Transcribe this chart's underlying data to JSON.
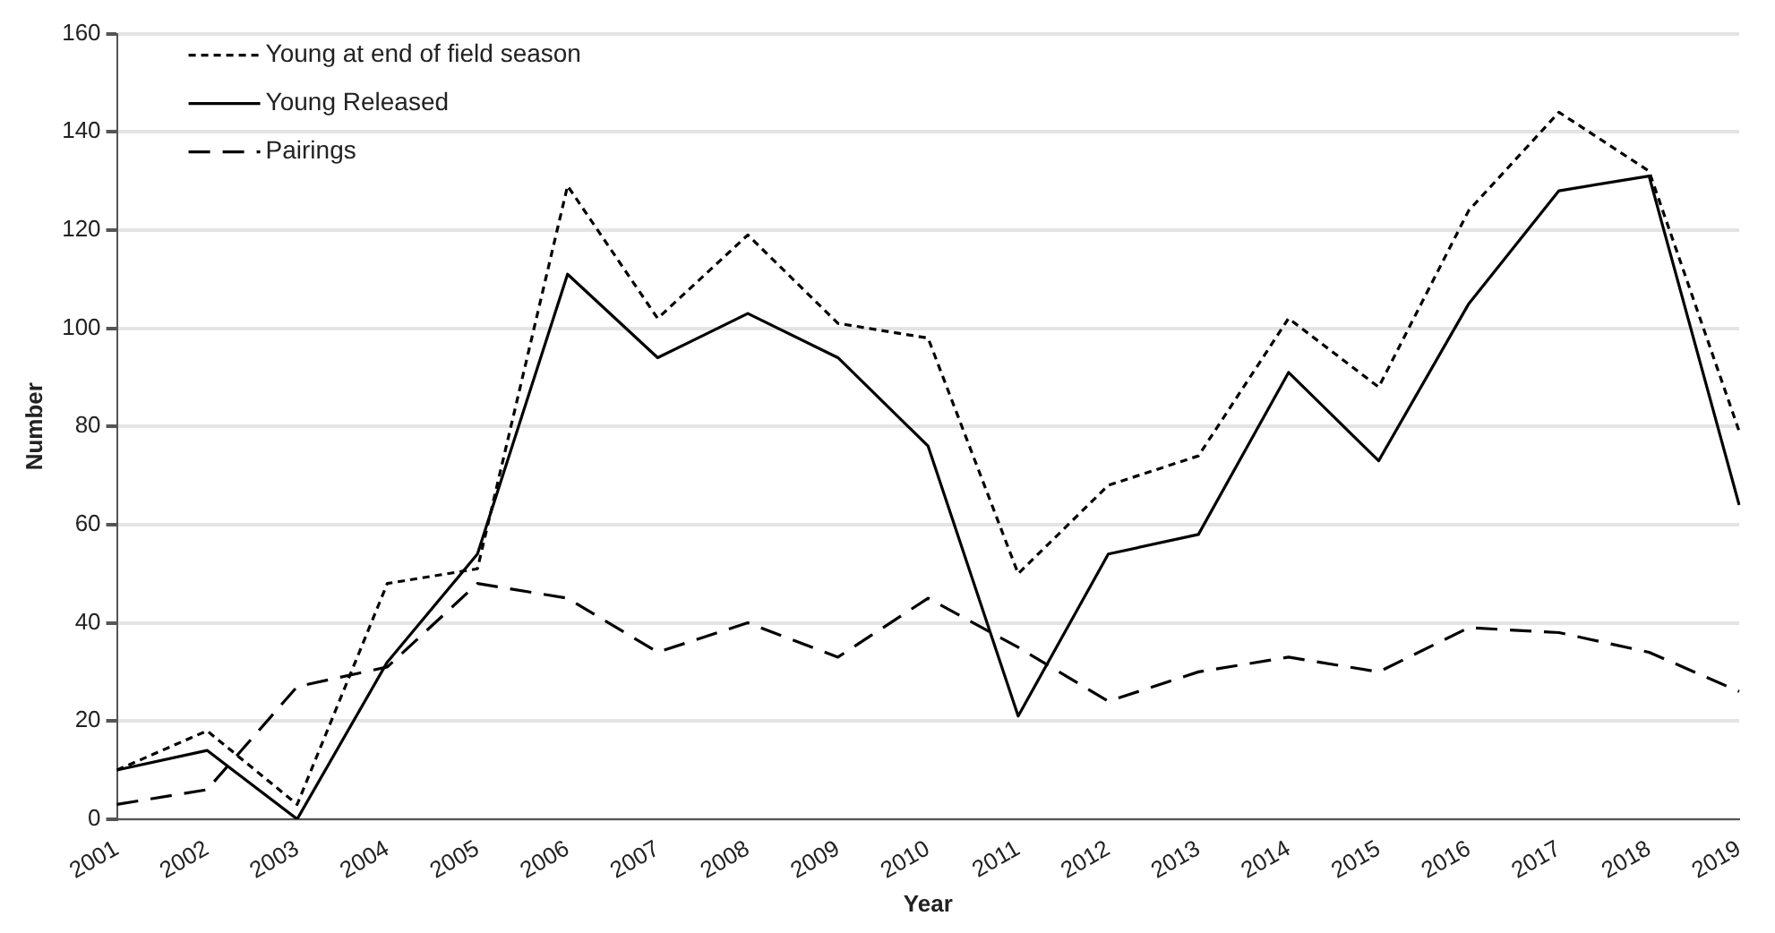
{
  "chart_data": {
    "type": "line",
    "xlabel": "Year",
    "ylabel": "Number",
    "categories": [
      "2001",
      "2002",
      "2003",
      "2004",
      "2005",
      "2006",
      "2007",
      "2008",
      "2009",
      "2010",
      "2011",
      "2012",
      "2013",
      "2014",
      "2015",
      "2016",
      "2017",
      "2018",
      "2019"
    ],
    "series": [
      {
        "name": "Young at end of field season",
        "color": "#000000",
        "line_style": "dotted",
        "values": [
          10,
          18,
          3,
          48,
          51,
          129,
          102,
          119,
          101,
          98,
          50,
          68,
          74,
          102,
          88,
          124,
          144,
          132,
          79
        ]
      },
      {
        "name": "Young Released",
        "color": "#000000",
        "line_style": "solid",
        "values": [
          10,
          14,
          0,
          32,
          54,
          111,
          94,
          103,
          94,
          76,
          21,
          54,
          58,
          91,
          73,
          105,
          128,
          131,
          64
        ]
      },
      {
        "name": "Pairings",
        "color": "#000000",
        "line_style": "dashed",
        "values": [
          3,
          6,
          27,
          31,
          48,
          45,
          34,
          40,
          33,
          45,
          35,
          24,
          30,
          33,
          30,
          39,
          38,
          34,
          26
        ]
      }
    ],
    "ylim": [
      0,
      160
    ],
    "yticks": [
      0,
      20,
      40,
      60,
      80,
      100,
      120,
      140,
      160
    ],
    "grid": "y",
    "legend": "top left",
    "marker": "none"
  }
}
